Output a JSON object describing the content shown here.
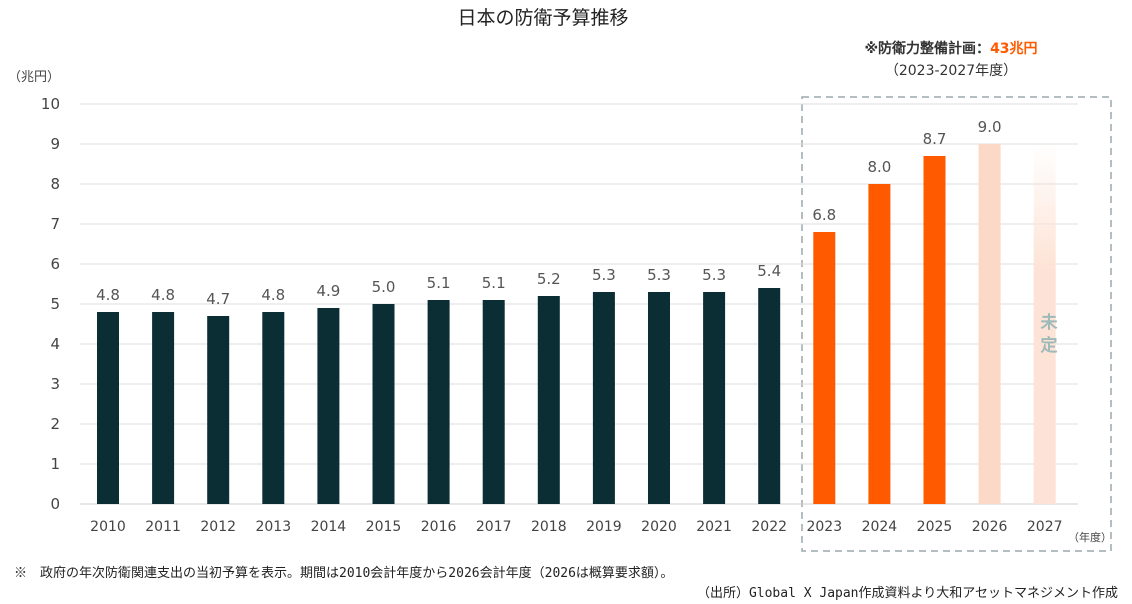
{
  "title": "日本の防衛予算推移",
  "plan_label": {
    "prefix": "※防衛力整備計画：",
    "amount": "43兆円",
    "period": "（2023-2027年度）"
  },
  "undecided_label": "未定",
  "footnote": "※　政府の年次防衛関連支出の当初予算を表示。期間は2010会計年度から2026会計年度（2026は概算要求額）。",
  "source": "（出所）Global X Japan作成資料より大和アセットマネジメント作成",
  "colors": {
    "historical": "#0b2e35",
    "planned": "#ff5a00",
    "requested": "#fcd9c7",
    "undecided_gradient": "#fde3d5",
    "box": "#9aa9ae",
    "grid": "#dcdcdc"
  },
  "chart_data": {
    "type": "bar",
    "title": "日本の防衛予算推移",
    "ylabel": "（兆円）",
    "xlabel": "（年度）",
    "ylim": [
      0,
      10
    ],
    "yticks": [
      "0",
      "1",
      "2",
      "3",
      "4",
      "5",
      "6",
      "7",
      "8",
      "9",
      "10"
    ],
    "grid": true,
    "categories": [
      "2010",
      "2011",
      "2012",
      "2013",
      "2014",
      "2015",
      "2016",
      "2017",
      "2018",
      "2019",
      "2020",
      "2021",
      "2022",
      "2023",
      "2024",
      "2025",
      "2026",
      "2027"
    ],
    "values": [
      4.8,
      4.8,
      4.7,
      4.8,
      4.9,
      5.0,
      5.1,
      5.1,
      5.2,
      5.3,
      5.3,
      5.3,
      5.4,
      6.8,
      8.0,
      8.7,
      9.0,
      null
    ],
    "value_labels": [
      "4.8",
      "4.8",
      "4.7",
      "4.8",
      "4.9",
      "5.0",
      "5.1",
      "5.1",
      "5.2",
      "5.3",
      "5.3",
      "5.3",
      "5.4",
      "6.8",
      "8.0",
      "8.7",
      "9.0",
      ""
    ],
    "bar_kind": [
      "historical",
      "historical",
      "historical",
      "historical",
      "historical",
      "historical",
      "historical",
      "historical",
      "historical",
      "historical",
      "historical",
      "historical",
      "historical",
      "planned",
      "planned",
      "planned",
      "requested",
      "undecided"
    ]
  }
}
